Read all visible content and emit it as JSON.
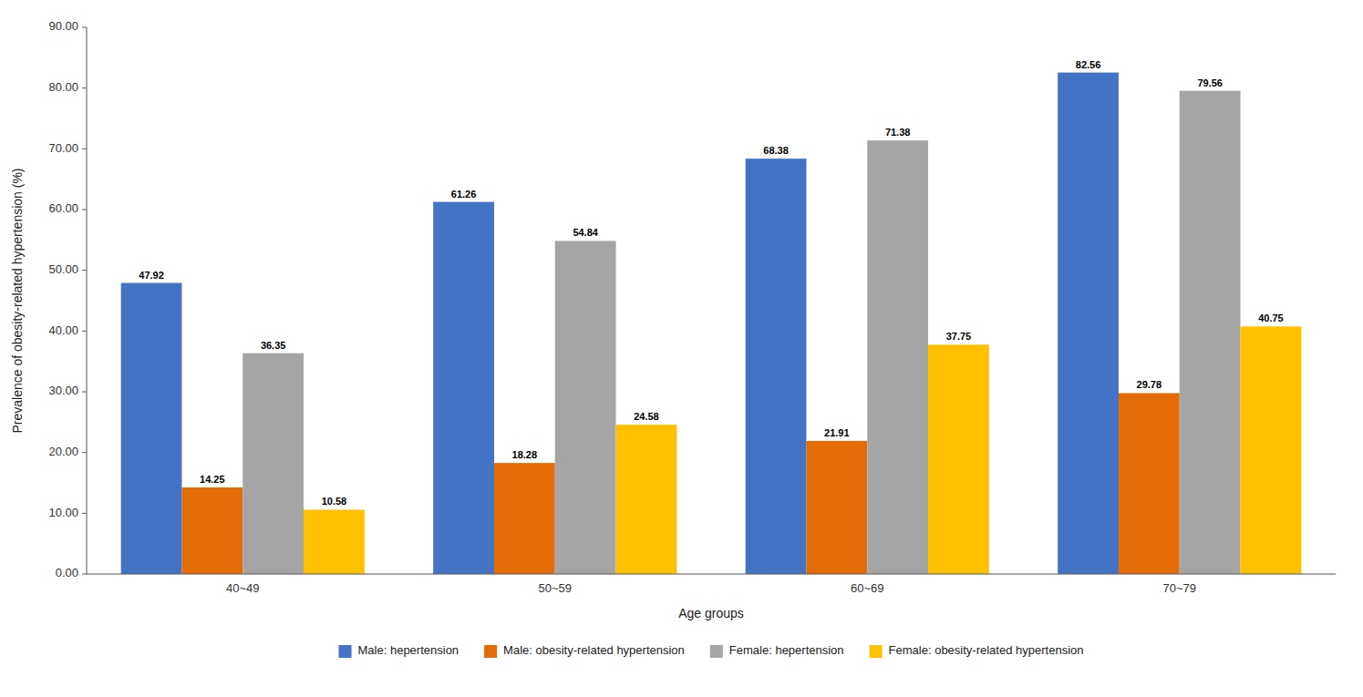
{
  "chart_data": {
    "type": "bar",
    "xlabel": "Age groups",
    "ylabel": "Prevalence of obesity-related hypertension (%)",
    "categories": [
      "40~49",
      "50~59",
      "60~69",
      "70~79"
    ],
    "series": [
      {
        "name": "Male: hepertension",
        "color": "#4472C4",
        "values": [
          47.92,
          61.26,
          68.38,
          82.56
        ]
      },
      {
        "name": "Male: obesity-related hypertension",
        "color": "#E36C09",
        "values": [
          14.25,
          18.28,
          21.91,
          29.78
        ]
      },
      {
        "name": "Female: hepertension",
        "color": "#A5A5A5",
        "values": [
          36.35,
          54.84,
          71.38,
          79.56
        ]
      },
      {
        "name": "Female: obesity-related hypertension",
        "color": "#FFC000",
        "values": [
          10.58,
          24.58,
          37.75,
          40.75
        ]
      }
    ],
    "ylim": [
      0,
      90
    ],
    "yticks": [
      {
        "value": 0,
        "label": "0.00"
      },
      {
        "value": 10,
        "label": "10.00"
      },
      {
        "value": 20,
        "label": "20.00"
      },
      {
        "value": 30,
        "label": "30.00"
      },
      {
        "value": 40,
        "label": "40.00"
      },
      {
        "value": 50,
        "label": "50.00"
      },
      {
        "value": 60,
        "label": "60.00"
      },
      {
        "value": 70,
        "label": "70.00"
      },
      {
        "value": 80,
        "label": "80.00"
      },
      {
        "value": 90,
        "label": "90.00"
      }
    ],
    "grid": false,
    "legend": "bottom",
    "data_labels": true
  }
}
